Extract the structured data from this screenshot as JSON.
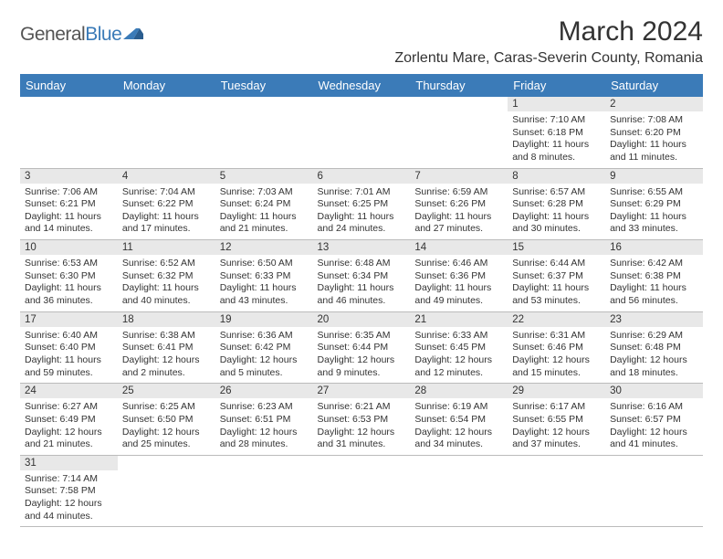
{
  "logo": {
    "text_general": "General",
    "text_blue": "Blue"
  },
  "title": "March 2024",
  "location": "Zorlentu Mare, Caras-Severin County, Romania",
  "colors": {
    "header_bg": "#3b7bb8",
    "header_fg": "#ffffff",
    "daynum_bg": "#e8e8e8",
    "border": "#bbbbbb",
    "text": "#333333",
    "page_bg": "#ffffff"
  },
  "weekdays": [
    "Sunday",
    "Monday",
    "Tuesday",
    "Wednesday",
    "Thursday",
    "Friday",
    "Saturday"
  ],
  "weeks": [
    [
      null,
      null,
      null,
      null,
      null,
      {
        "n": "1",
        "sr": "Sunrise: 7:10 AM",
        "ss": "Sunset: 6:18 PM",
        "dl": "Daylight: 11 hours and 8 minutes."
      },
      {
        "n": "2",
        "sr": "Sunrise: 7:08 AM",
        "ss": "Sunset: 6:20 PM",
        "dl": "Daylight: 11 hours and 11 minutes."
      }
    ],
    [
      {
        "n": "3",
        "sr": "Sunrise: 7:06 AM",
        "ss": "Sunset: 6:21 PM",
        "dl": "Daylight: 11 hours and 14 minutes."
      },
      {
        "n": "4",
        "sr": "Sunrise: 7:04 AM",
        "ss": "Sunset: 6:22 PM",
        "dl": "Daylight: 11 hours and 17 minutes."
      },
      {
        "n": "5",
        "sr": "Sunrise: 7:03 AM",
        "ss": "Sunset: 6:24 PM",
        "dl": "Daylight: 11 hours and 21 minutes."
      },
      {
        "n": "6",
        "sr": "Sunrise: 7:01 AM",
        "ss": "Sunset: 6:25 PM",
        "dl": "Daylight: 11 hours and 24 minutes."
      },
      {
        "n": "7",
        "sr": "Sunrise: 6:59 AM",
        "ss": "Sunset: 6:26 PM",
        "dl": "Daylight: 11 hours and 27 minutes."
      },
      {
        "n": "8",
        "sr": "Sunrise: 6:57 AM",
        "ss": "Sunset: 6:28 PM",
        "dl": "Daylight: 11 hours and 30 minutes."
      },
      {
        "n": "9",
        "sr": "Sunrise: 6:55 AM",
        "ss": "Sunset: 6:29 PM",
        "dl": "Daylight: 11 hours and 33 minutes."
      }
    ],
    [
      {
        "n": "10",
        "sr": "Sunrise: 6:53 AM",
        "ss": "Sunset: 6:30 PM",
        "dl": "Daylight: 11 hours and 36 minutes."
      },
      {
        "n": "11",
        "sr": "Sunrise: 6:52 AM",
        "ss": "Sunset: 6:32 PM",
        "dl": "Daylight: 11 hours and 40 minutes."
      },
      {
        "n": "12",
        "sr": "Sunrise: 6:50 AM",
        "ss": "Sunset: 6:33 PM",
        "dl": "Daylight: 11 hours and 43 minutes."
      },
      {
        "n": "13",
        "sr": "Sunrise: 6:48 AM",
        "ss": "Sunset: 6:34 PM",
        "dl": "Daylight: 11 hours and 46 minutes."
      },
      {
        "n": "14",
        "sr": "Sunrise: 6:46 AM",
        "ss": "Sunset: 6:36 PM",
        "dl": "Daylight: 11 hours and 49 minutes."
      },
      {
        "n": "15",
        "sr": "Sunrise: 6:44 AM",
        "ss": "Sunset: 6:37 PM",
        "dl": "Daylight: 11 hours and 53 minutes."
      },
      {
        "n": "16",
        "sr": "Sunrise: 6:42 AM",
        "ss": "Sunset: 6:38 PM",
        "dl": "Daylight: 11 hours and 56 minutes."
      }
    ],
    [
      {
        "n": "17",
        "sr": "Sunrise: 6:40 AM",
        "ss": "Sunset: 6:40 PM",
        "dl": "Daylight: 11 hours and 59 minutes."
      },
      {
        "n": "18",
        "sr": "Sunrise: 6:38 AM",
        "ss": "Sunset: 6:41 PM",
        "dl": "Daylight: 12 hours and 2 minutes."
      },
      {
        "n": "19",
        "sr": "Sunrise: 6:36 AM",
        "ss": "Sunset: 6:42 PM",
        "dl": "Daylight: 12 hours and 5 minutes."
      },
      {
        "n": "20",
        "sr": "Sunrise: 6:35 AM",
        "ss": "Sunset: 6:44 PM",
        "dl": "Daylight: 12 hours and 9 minutes."
      },
      {
        "n": "21",
        "sr": "Sunrise: 6:33 AM",
        "ss": "Sunset: 6:45 PM",
        "dl": "Daylight: 12 hours and 12 minutes."
      },
      {
        "n": "22",
        "sr": "Sunrise: 6:31 AM",
        "ss": "Sunset: 6:46 PM",
        "dl": "Daylight: 12 hours and 15 minutes."
      },
      {
        "n": "23",
        "sr": "Sunrise: 6:29 AM",
        "ss": "Sunset: 6:48 PM",
        "dl": "Daylight: 12 hours and 18 minutes."
      }
    ],
    [
      {
        "n": "24",
        "sr": "Sunrise: 6:27 AM",
        "ss": "Sunset: 6:49 PM",
        "dl": "Daylight: 12 hours and 21 minutes."
      },
      {
        "n": "25",
        "sr": "Sunrise: 6:25 AM",
        "ss": "Sunset: 6:50 PM",
        "dl": "Daylight: 12 hours and 25 minutes."
      },
      {
        "n": "26",
        "sr": "Sunrise: 6:23 AM",
        "ss": "Sunset: 6:51 PM",
        "dl": "Daylight: 12 hours and 28 minutes."
      },
      {
        "n": "27",
        "sr": "Sunrise: 6:21 AM",
        "ss": "Sunset: 6:53 PM",
        "dl": "Daylight: 12 hours and 31 minutes."
      },
      {
        "n": "28",
        "sr": "Sunrise: 6:19 AM",
        "ss": "Sunset: 6:54 PM",
        "dl": "Daylight: 12 hours and 34 minutes."
      },
      {
        "n": "29",
        "sr": "Sunrise: 6:17 AM",
        "ss": "Sunset: 6:55 PM",
        "dl": "Daylight: 12 hours and 37 minutes."
      },
      {
        "n": "30",
        "sr": "Sunrise: 6:16 AM",
        "ss": "Sunset: 6:57 PM",
        "dl": "Daylight: 12 hours and 41 minutes."
      }
    ],
    [
      {
        "n": "31",
        "sr": "Sunrise: 7:14 AM",
        "ss": "Sunset: 7:58 PM",
        "dl": "Daylight: 12 hours and 44 minutes."
      },
      null,
      null,
      null,
      null,
      null,
      null
    ]
  ]
}
